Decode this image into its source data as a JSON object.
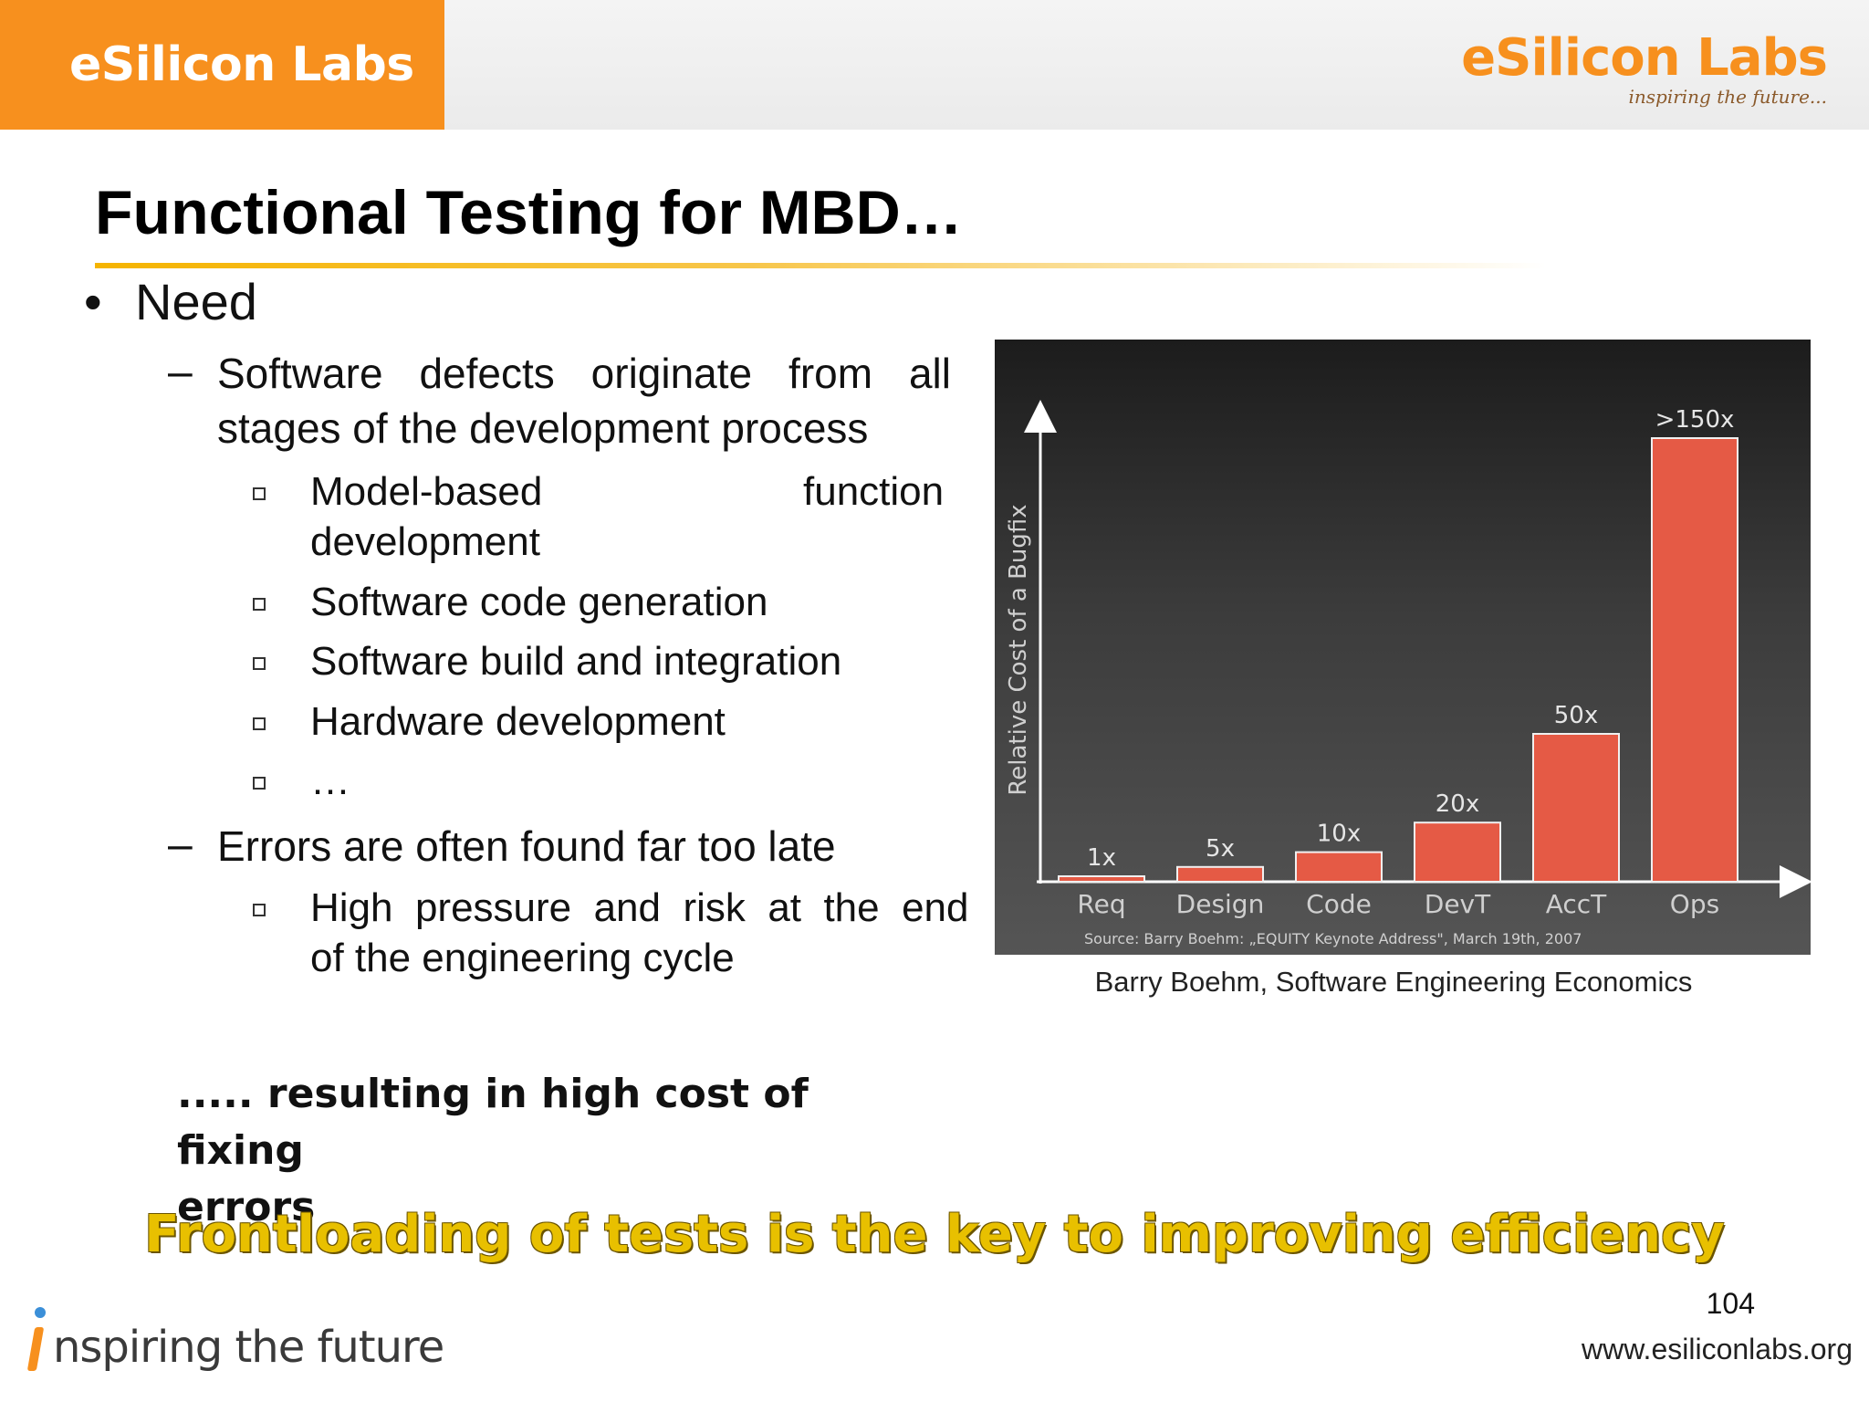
{
  "header": {
    "brand": "eSilicon Labs",
    "logo_text": "eSilicon Labs",
    "logo_tagline": "inspiring the future..."
  },
  "title": "Functional Testing for MBD…",
  "bullets": {
    "need": "Need",
    "defects": [
      "Software  defects  originate  from  all",
      "stages of the development process"
    ],
    "sources": {
      "model_based_1": "Model-based",
      "model_based_function": "function",
      "model_based_2": "development",
      "code_gen": "Software code generation",
      "build": "Software build and integration",
      "hardware": "Hardware development",
      "ellipsis": "…"
    },
    "late": "Errors are often found far too late",
    "pressure": [
      "High  pressure  and  risk  at  the  end",
      "of the engineering cycle"
    ]
  },
  "chart_data": {
    "type": "bar",
    "categories": [
      "Req",
      "Design",
      "Code",
      "DevT",
      "AccT",
      "Ops"
    ],
    "values": [
      1,
      5,
      10,
      20,
      50,
      150
    ],
    "data_labels": [
      "1x",
      "5x",
      "10x",
      "20x",
      "50x",
      ">150x"
    ],
    "ylabel": "Relative Cost of a Bugfix",
    "source": "Source: Barry Boehm: „EQUITY Keynote Address\", March 19th, 2007",
    "caption": "Barry Boehm, Software Engineering Economics",
    "bar_color": "#e55a45",
    "background": "dark gradient"
  },
  "result": [
    "..... resulting in high cost of fixing",
    "errors"
  ],
  "key_statement": "Frontloading of tests is the key to improving efficiency",
  "page_number": "104",
  "footer": {
    "tagline": "nspiring the future",
    "website": "www.esiliconlabs.org"
  }
}
